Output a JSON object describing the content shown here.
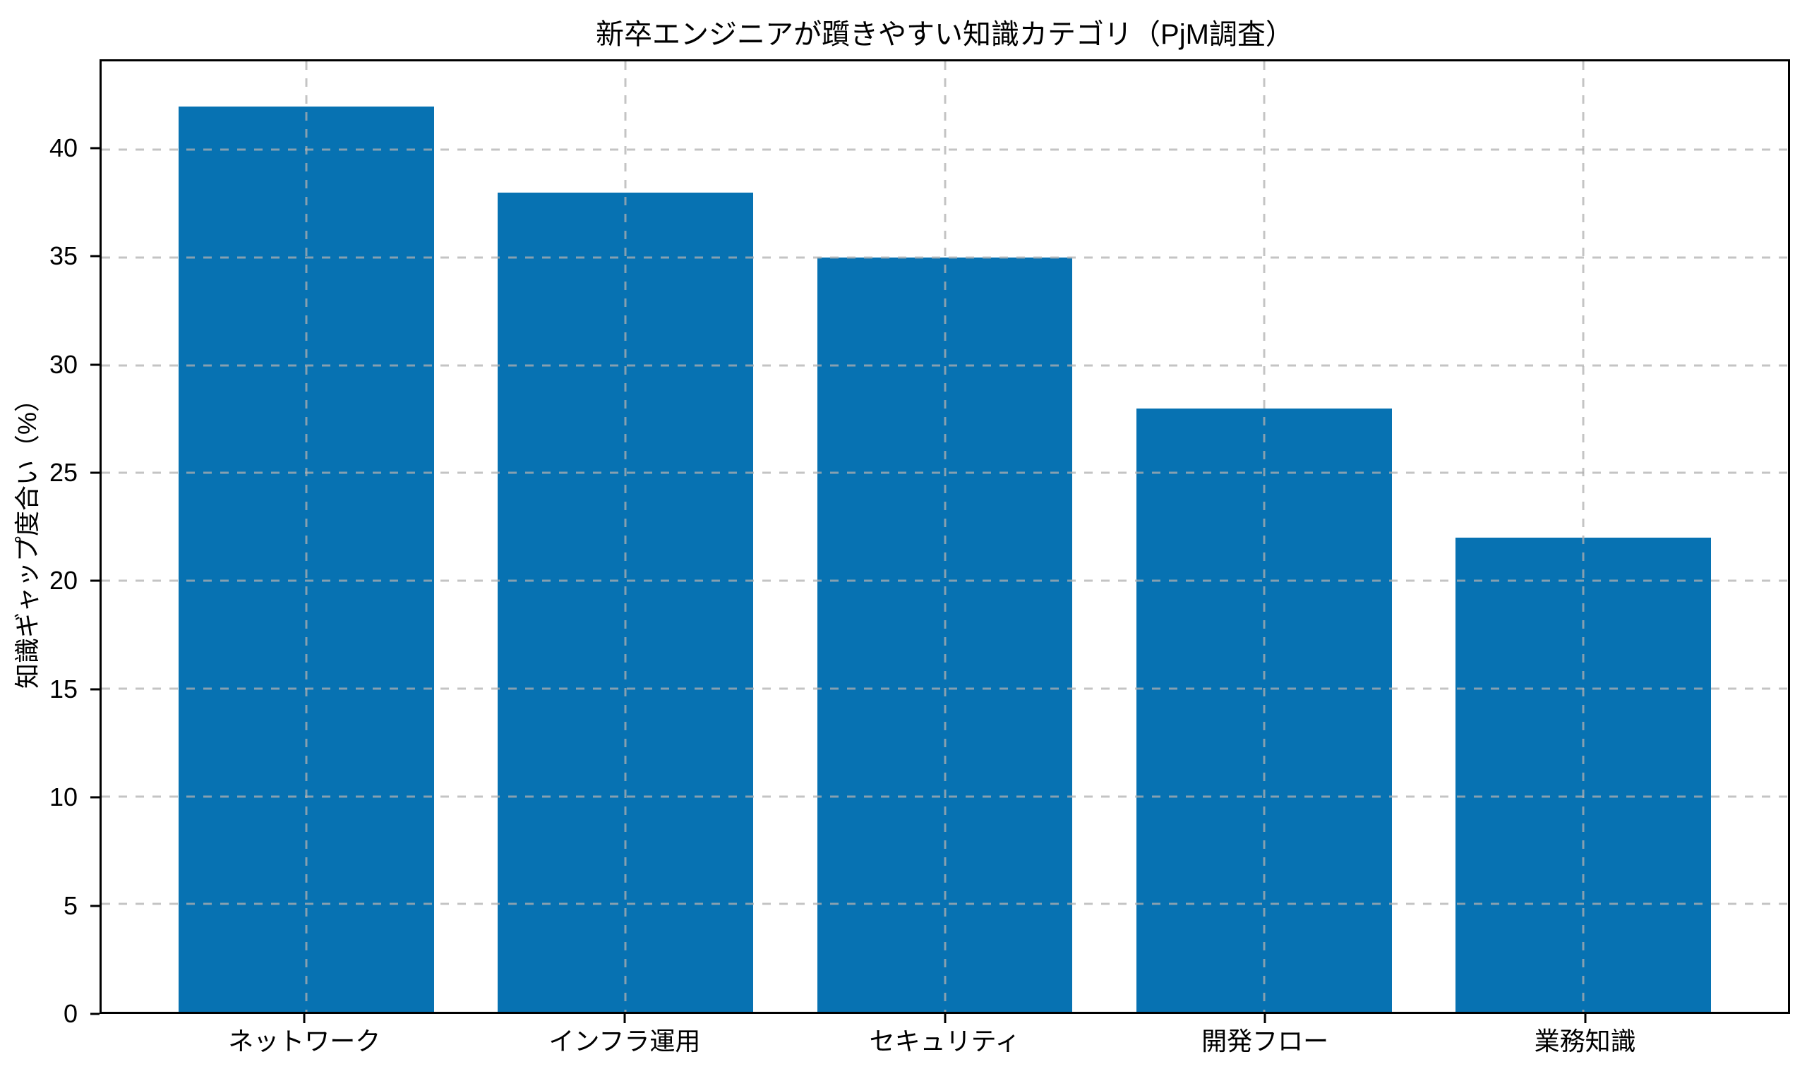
{
  "chart_data": {
    "type": "bar",
    "title": "新卒エンジニアが躓きやすい知識カテゴリ（PjM調査）",
    "xlabel": "",
    "ylabel": "知識ギャップ度合い（%）",
    "categories": [
      "ネットワーク",
      "インフラ運用",
      "セキュリティ",
      "開発フロー",
      "業務知識"
    ],
    "values": [
      42,
      38,
      35,
      28,
      22
    ],
    "yticks": [
      0,
      5,
      10,
      15,
      20,
      25,
      30,
      35,
      40
    ],
    "ylim": [
      0,
      44.1
    ],
    "xlim": [
      -0.64,
      4.64
    ],
    "bar_width": 0.8,
    "grid": {
      "visible": true,
      "axis": "both",
      "linestyle": "dashed"
    },
    "legend": {
      "visible": false
    },
    "colors": {
      "bar": "#0772b2",
      "grid": "#b0b0b0",
      "spine": "#000000",
      "text": "#000000",
      "background": "#ffffff"
    }
  }
}
